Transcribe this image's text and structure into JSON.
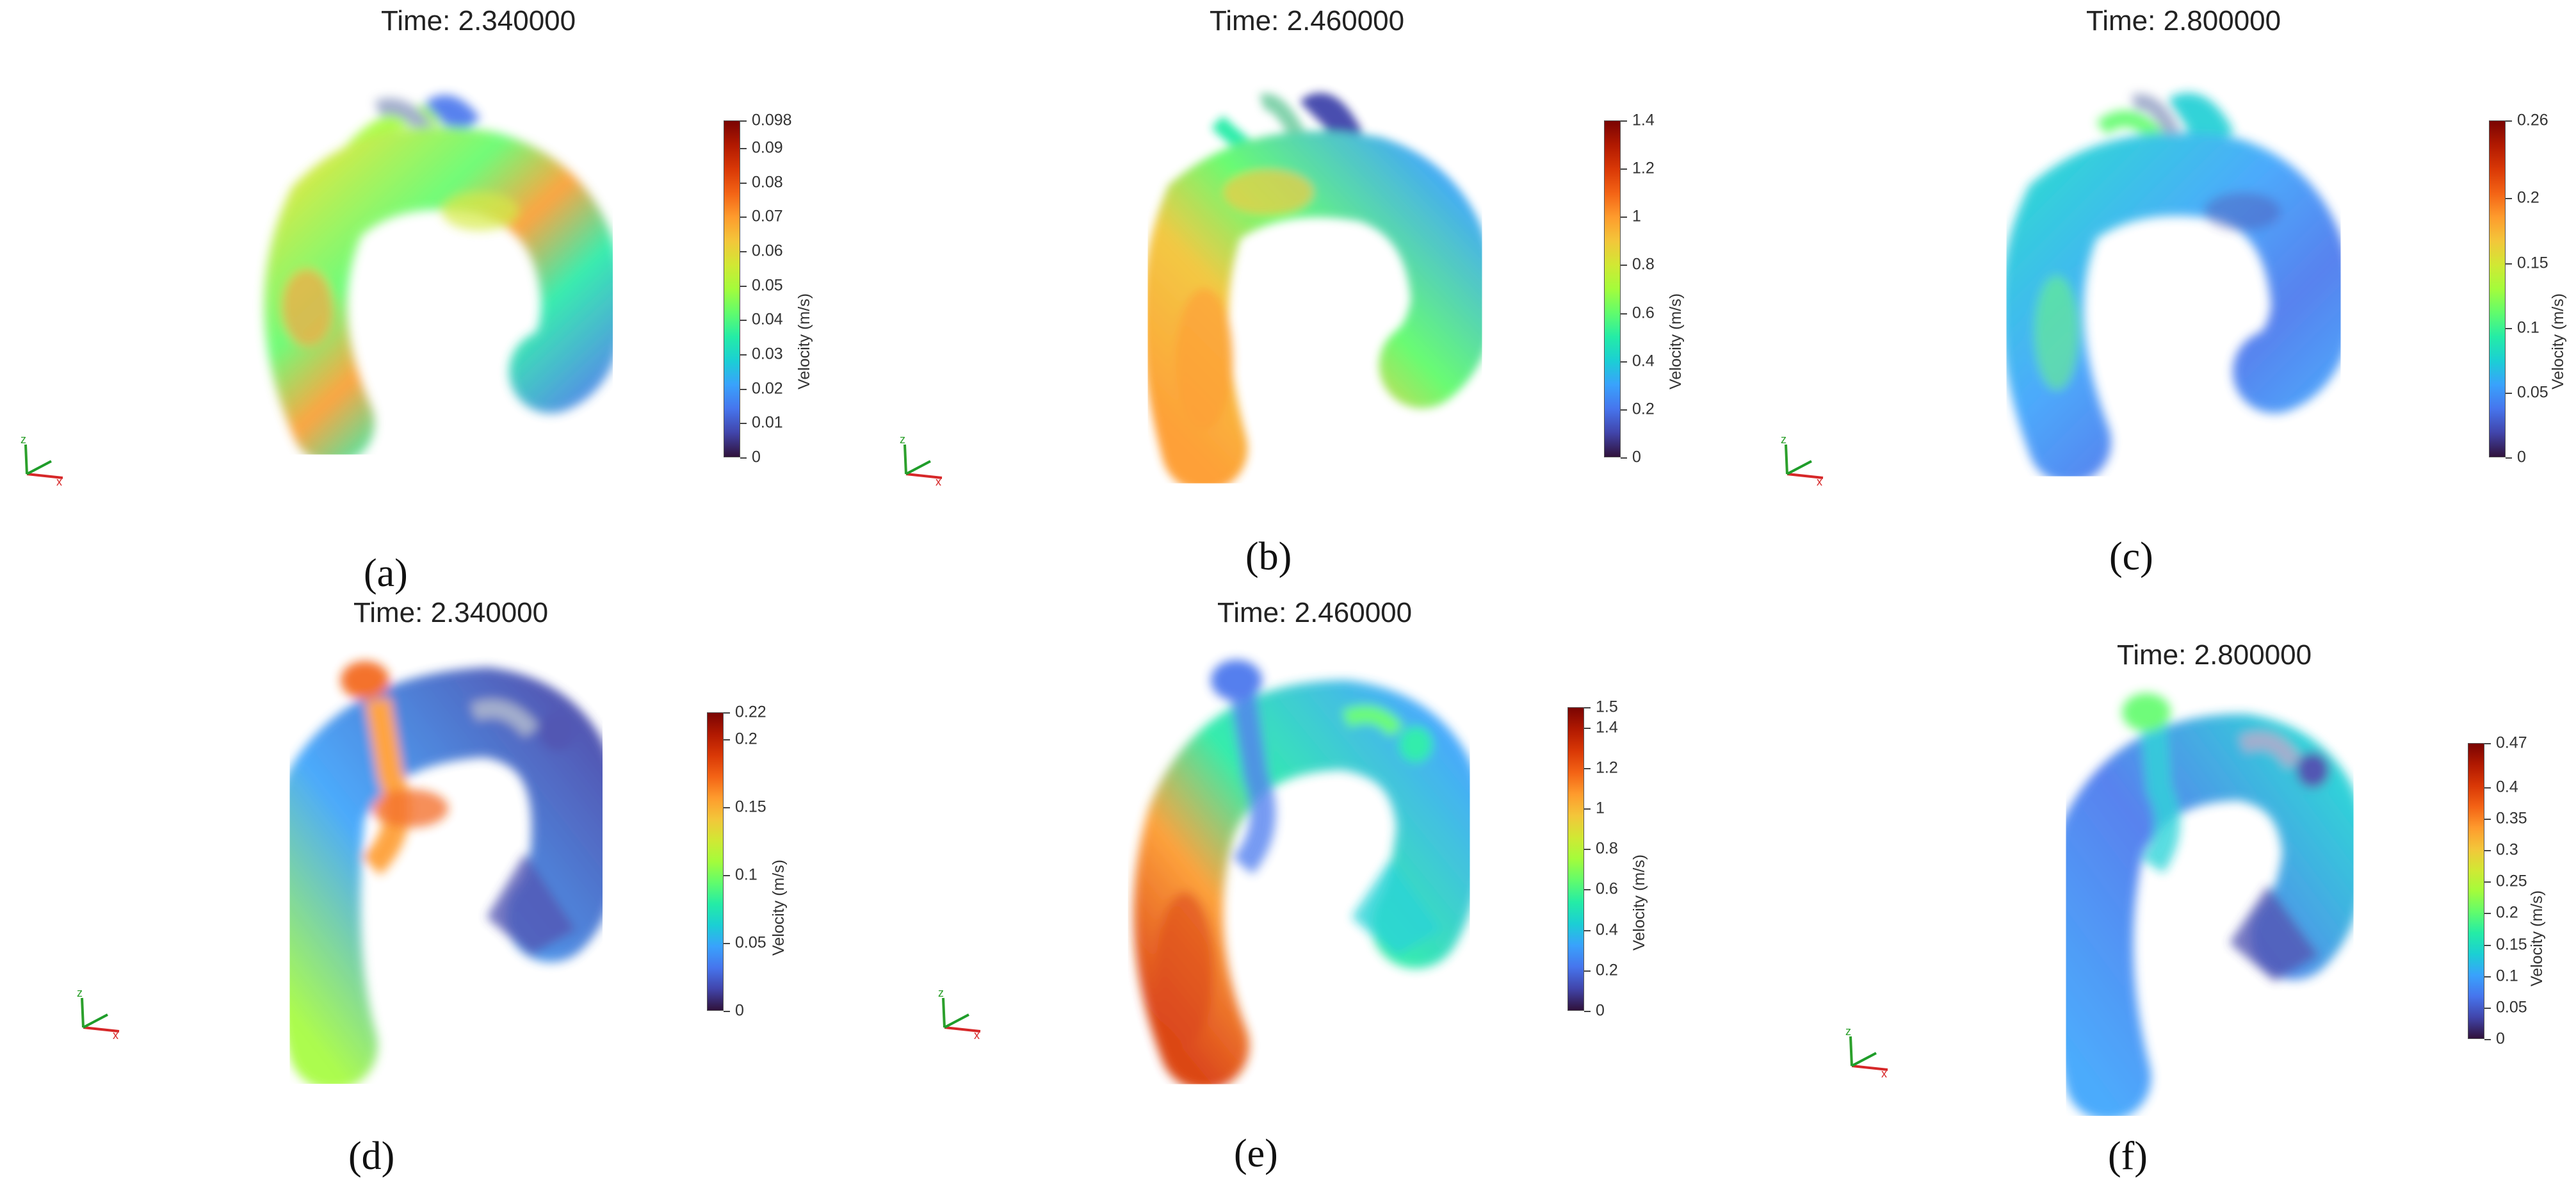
{
  "colors": {
    "colormap": [
      "#30123b",
      "#4145ab",
      "#4675ed",
      "#39a2fc",
      "#1bcfd4",
      "#24eca6",
      "#61fc6c",
      "#a4fc3b",
      "#d1e834",
      "#f3c63a",
      "#fe9b2d",
      "#f36315",
      "#d93806",
      "#b11901",
      "#7a0402"
    ],
    "axis_x": "#d62728",
    "axis_y": "#2ca02c",
    "axis_z": "#1f9d2a"
  },
  "colorbar_title": "Velocity (m/s)",
  "panels": [
    {
      "id": "a",
      "time": "Time: 2.340000",
      "label": "(a)",
      "ticks": [
        "0",
        "0.01",
        "0.02",
        "0.03",
        "0.04",
        "0.05",
        "0.06",
        "0.07",
        "0.08",
        "0.09",
        "0.098"
      ],
      "tick_values": [
        0,
        0.01,
        0.02,
        0.03,
        0.04,
        0.05,
        0.06,
        0.07,
        0.08,
        0.09,
        0.098
      ],
      "max": 0.098
    },
    {
      "id": "b",
      "time": "Time: 2.460000",
      "label": "(b)",
      "ticks": [
        "0",
        "0.2",
        "0.4",
        "0.6",
        "0.8",
        "1",
        "1.2",
        "1.4"
      ],
      "tick_values": [
        0,
        0.2,
        0.4,
        0.6,
        0.8,
        1,
        1.2,
        1.4
      ],
      "max": 1.4
    },
    {
      "id": "c",
      "time": "Time: 2.800000",
      "label": "(c)",
      "ticks": [
        "0",
        "0.05",
        "0.1",
        "0.15",
        "0.2",
        "0.26"
      ],
      "tick_values": [
        0,
        0.05,
        0.1,
        0.15,
        0.2,
        0.26
      ],
      "max": 0.26
    },
    {
      "id": "d",
      "time": "Time: 2.340000",
      "label": "(d)",
      "ticks": [
        "0",
        "0.05",
        "0.1",
        "0.15",
        "0.2",
        "0.22"
      ],
      "tick_values": [
        0,
        0.05,
        0.1,
        0.15,
        0.2,
        0.22
      ],
      "max": 0.22
    },
    {
      "id": "e",
      "time": "Time: 2.460000",
      "label": "(e)",
      "ticks": [
        "0",
        "0.2",
        "0.4",
        "0.6",
        "0.8",
        "1",
        "1.2",
        "1.4",
        "1.5"
      ],
      "tick_values": [
        0,
        0.2,
        0.4,
        0.6,
        0.8,
        1,
        1.2,
        1.4,
        1.5
      ],
      "max": 1.5
    },
    {
      "id": "f",
      "time": "Time: 2.800000",
      "label": "(f)",
      "ticks": [
        "0",
        "0.05",
        "0.1",
        "0.15",
        "0.2",
        "0.25",
        "0.3",
        "0.35",
        "0.4",
        "0.47"
      ],
      "tick_values": [
        0,
        0.05,
        0.1,
        0.15,
        0.2,
        0.25,
        0.3,
        0.35,
        0.4,
        0.47
      ],
      "max": 0.47
    }
  ]
}
